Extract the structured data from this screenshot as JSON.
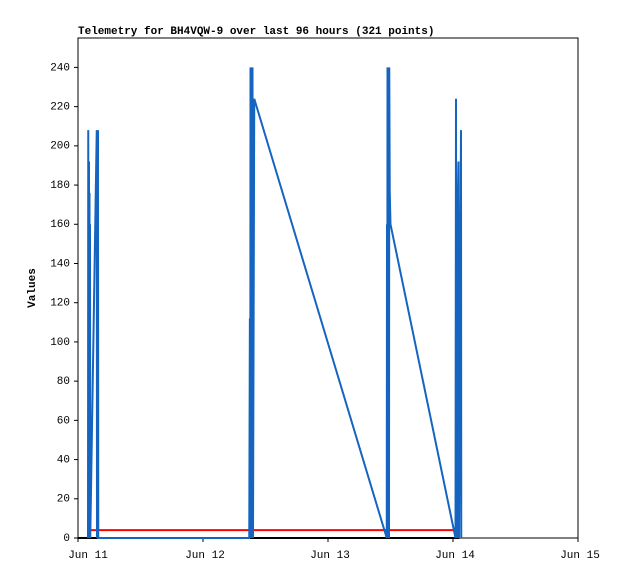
{
  "chart_data": {
    "type": "line",
    "title": "Telemetry for BH4VQW-9 over last 96 hours (321 points)",
    "y_label": "Values",
    "xlim": [
      11,
      15
    ],
    "xticks": [
      {
        "value": 11,
        "label": "Jun 11"
      },
      {
        "value": 12,
        "label": "Jun 12"
      },
      {
        "value": 13,
        "label": "Jun 13"
      },
      {
        "value": 14,
        "label": "Jun 14"
      },
      {
        "value": 15,
        "label": "Jun 15"
      }
    ],
    "ylim": [
      0,
      255
    ],
    "yticks": [
      0,
      20,
      40,
      60,
      80,
      100,
      120,
      140,
      160,
      180,
      200,
      220,
      240
    ],
    "series": [
      {
        "color": "#000000",
        "x": [
          11.0,
          14.05
        ],
        "values": [
          0,
          0
        ]
      },
      {
        "color": "#ff0000",
        "x": [
          11.08,
          14.02
        ],
        "values": [
          4,
          4
        ]
      },
      {
        "color": "#1565c0",
        "x": [
          11.08,
          11.082,
          11.084,
          11.088,
          11.09,
          11.092,
          11.094,
          11.096,
          11.098,
          11.15,
          11.152,
          11.16,
          11.162,
          12.37,
          12.375,
          12.378,
          12.38,
          12.383,
          12.386,
          12.39,
          12.396,
          12.4,
          12.41,
          13.47,
          13.472,
          13.474,
          13.476,
          13.48,
          13.484,
          13.488,
          13.49,
          13.494,
          13.5,
          14.02,
          14.024,
          14.028,
          14.032,
          14.036,
          14.04,
          14.044,
          14.048,
          14.064,
          14.066
        ],
        "values": [
          0,
          208,
          0,
          192,
          0,
          176,
          0,
          160,
          0,
          208,
          0,
          208,
          0,
          0,
          112,
          0,
          240,
          0,
          200,
          0,
          240,
          0,
          224,
          0,
          160,
          0,
          240,
          26,
          176,
          0,
          240,
          176,
          160,
          0,
          224,
          0,
          144,
          0,
          176,
          192,
          0,
          208,
          0
        ]
      }
    ]
  }
}
